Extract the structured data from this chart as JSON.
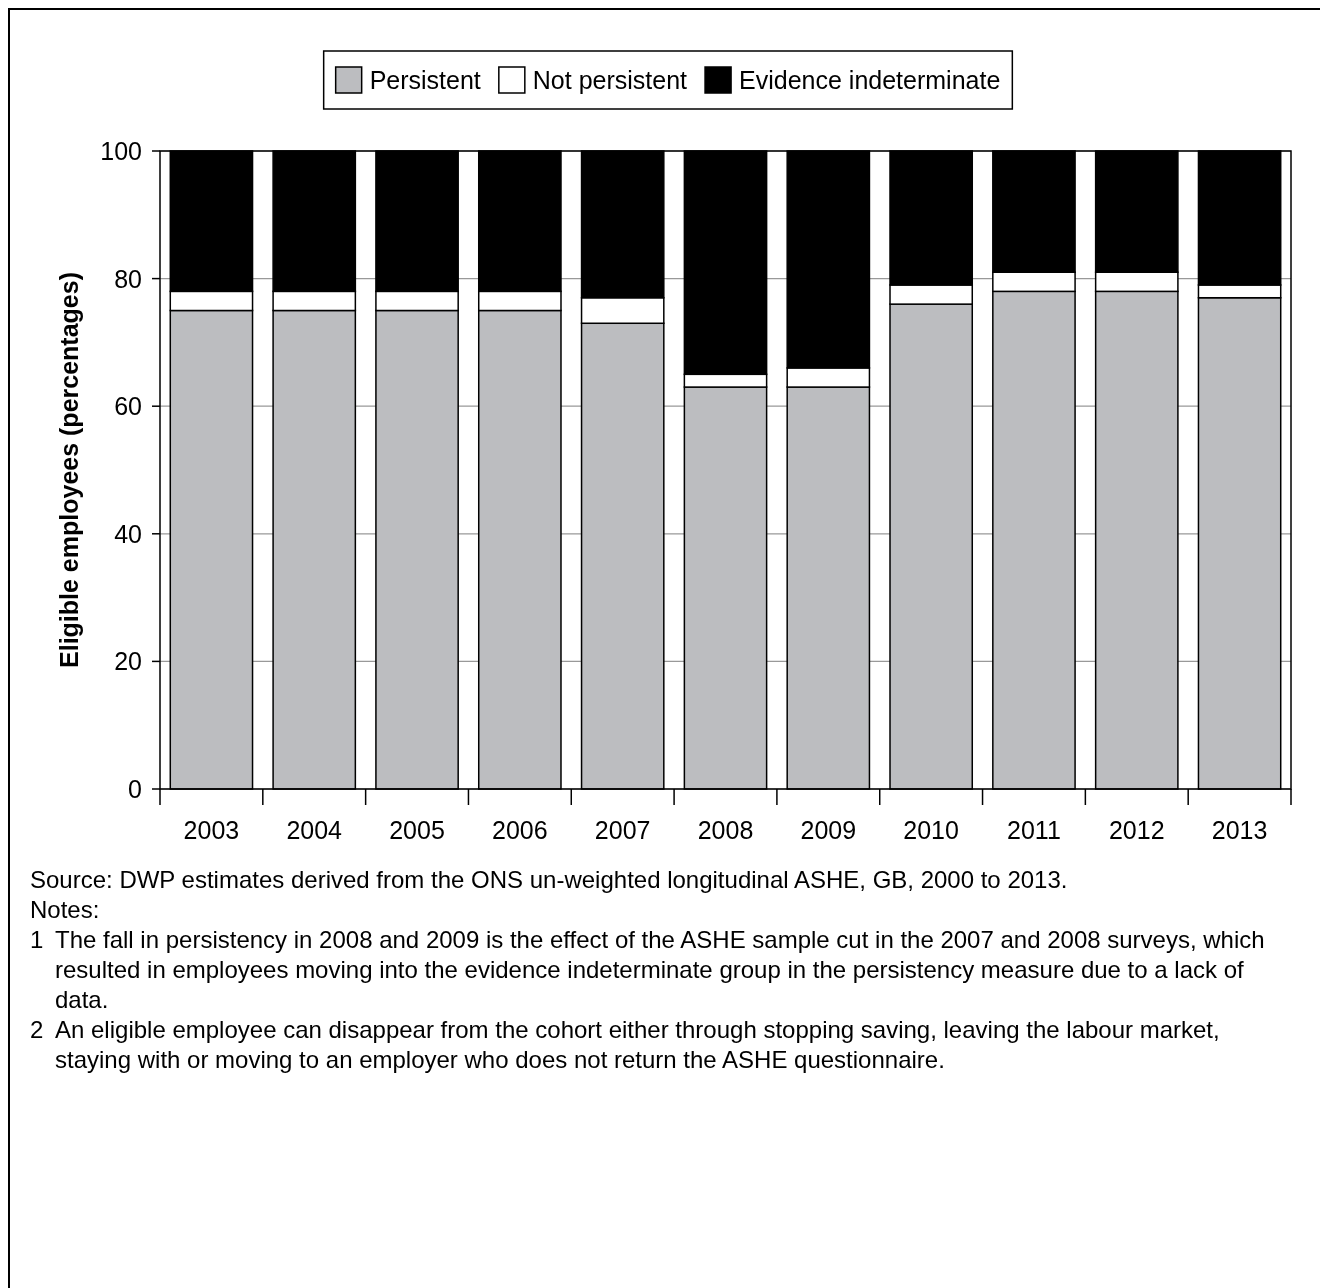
{
  "chart_data": {
    "type": "bar",
    "stacked": true,
    "ylabel": "Eligible employees (percentages)",
    "categories": [
      "2003",
      "2004",
      "2005",
      "2006",
      "2007",
      "2008",
      "2009",
      "2010",
      "2011",
      "2012",
      "2013"
    ],
    "series": [
      {
        "name": "Persistent",
        "color": "#bcbdc0",
        "values": [
          75,
          75,
          75,
          75,
          73,
          63,
          63,
          76,
          78,
          78,
          77
        ]
      },
      {
        "name": "Not persistent",
        "color": "#ffffff",
        "values": [
          3,
          3,
          3,
          3,
          4,
          2,
          3,
          3,
          3,
          3,
          2
        ]
      },
      {
        "name": "Evidence indeterminate",
        "color": "#000000",
        "values": [
          22,
          22,
          22,
          22,
          23,
          35,
          34,
          21,
          19,
          19,
          21
        ]
      }
    ],
    "ylim": [
      0,
      100
    ],
    "yticks": [
      0,
      20,
      40,
      60,
      80,
      100
    ],
    "grid": "y",
    "legend": "top",
    "annotations": [
      "Source: DWP estimates derived from the ONS un-weighted longitudinal ASHE, GB, 2000 to 2013.",
      "Notes:",
      "1 The fall in persistency in 2008 and 2009 is the effect of the ASHE sample cut in the 2007 and 2008 surveys, which resulted in employees moving into the evidence indeterminate group in the persistency measure due to a lack of data.",
      "2 An eligible employee can disappear from the cohort either through stopping saving, leaving the labour market, staying with or moving to an employer who does not return the ASHE questionnaire."
    ]
  }
}
